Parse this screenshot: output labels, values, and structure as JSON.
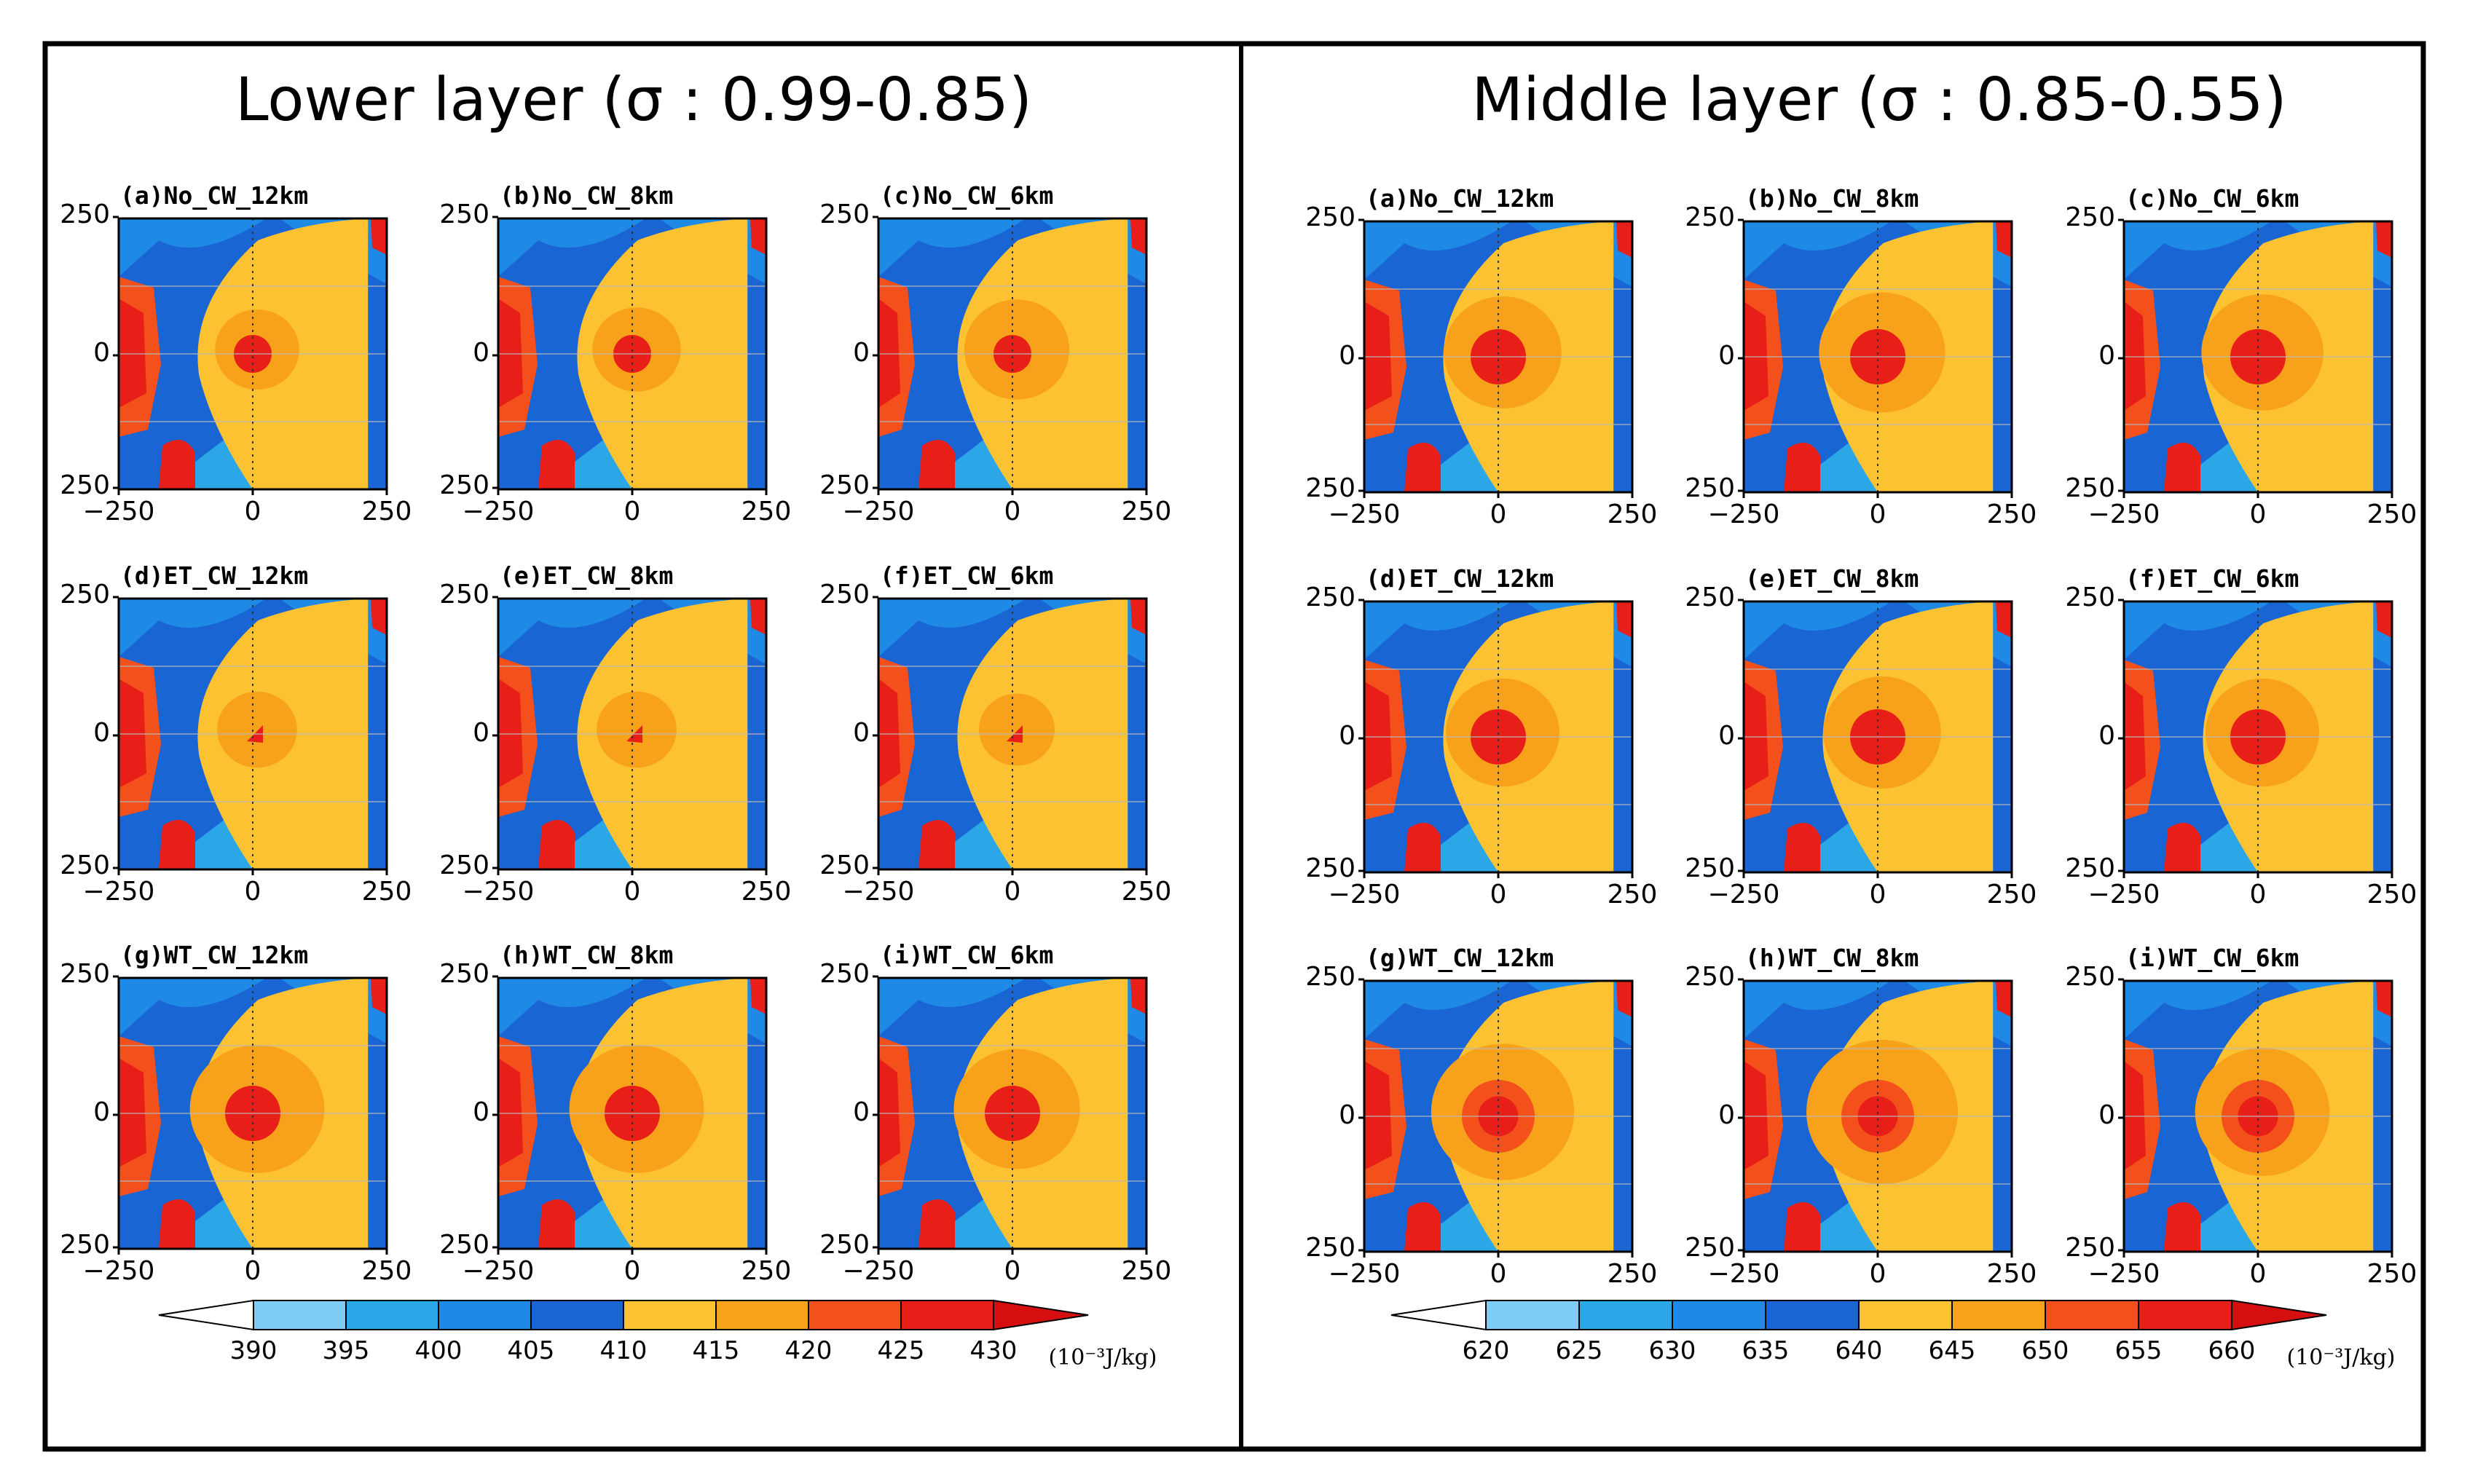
{
  "figure": {
    "panels": [
      {
        "title": "Lower layer (σ : 0.99-0.85)",
        "unit": "(10⁻³J/kg)",
        "colorbar": {
          "levels": [
            390,
            395,
            400,
            405,
            410,
            415,
            420,
            425,
            430
          ],
          "colors": [
            "#ffffff",
            "#7fcdf4",
            "#2ba7e8",
            "#1e8ae6",
            "#1a65d4",
            "#fdc232",
            "#f8a11b",
            "#f4501c",
            "#e81e18",
            "#d50e10"
          ]
        },
        "subplots": [
          {
            "label": "(a)No_CW_12km",
            "core": 1,
            "ring": 1.0
          },
          {
            "label": "(b)No_CW_8km",
            "core": 1,
            "ring": 1.05
          },
          {
            "label": "(c)No_CW_6km",
            "core": 1,
            "ring": 1.25
          },
          {
            "label": "(d)ET_CW_12km",
            "core": 0,
            "ring": 0.95
          },
          {
            "label": "(e)ET_CW_8km",
            "core": 0,
            "ring": 0.95
          },
          {
            "label": "(f)ET_CW_6km",
            "core": 0,
            "ring": 0.9
          },
          {
            "label": "(g)WT_CW_12km",
            "core": 2,
            "ring": 1.6
          },
          {
            "label": "(h)WT_CW_8km",
            "core": 2,
            "ring": 1.6
          },
          {
            "label": "(i)WT_CW_6km",
            "core": 2,
            "ring": 1.5
          }
        ]
      },
      {
        "title": "Middle layer (σ : 0.85-0.55)",
        "unit": "(10⁻³J/kg)",
        "colorbar": {
          "levels": [
            620,
            625,
            630,
            635,
            640,
            645,
            650,
            655,
            660
          ],
          "colors": [
            "#ffffff",
            "#7fcdf4",
            "#2ba7e8",
            "#1e8ae6",
            "#1a65d4",
            "#fdc232",
            "#f8a11b",
            "#f4501c",
            "#e81e18",
            "#d50e10"
          ]
        },
        "subplots": [
          {
            "label": "(a)No_CW_12km",
            "core": 2,
            "ring": 1.4
          },
          {
            "label": "(b)No_CW_8km",
            "core": 2,
            "ring": 1.5
          },
          {
            "label": "(c)No_CW_6km",
            "core": 2,
            "ring": 1.45
          },
          {
            "label": "(d)ET_CW_12km",
            "core": 2,
            "ring": 1.35
          },
          {
            "label": "(e)ET_CW_8km",
            "core": 2,
            "ring": 1.4
          },
          {
            "label": "(f)ET_CW_6km",
            "core": 2,
            "ring": 1.35
          },
          {
            "label": "(g)WT_CW_12km",
            "core": 3,
            "ring": 1.7
          },
          {
            "label": "(h)WT_CW_8km",
            "core": 3,
            "ring": 1.8
          },
          {
            "label": "(i)WT_CW_6km",
            "core": 3,
            "ring": 1.6
          }
        ]
      }
    ]
  },
  "chart_data": [
    {
      "type": "heatmap",
      "title": "Lower layer (σ : 0.99-0.85)",
      "xlim": [
        -250,
        250
      ],
      "ylim": [
        -250,
        250
      ],
      "x_ticks": [
        "−250",
        "0",
        "250"
      ],
      "y_ticks": [
        "250",
        "0",
        "250"
      ],
      "panels": [
        "(a)No_CW_12km",
        "(b)No_CW_8km",
        "(c)No_CW_6km",
        "(d)ET_CW_12km",
        "(e)ET_CW_8km",
        "(f)ET_CW_6km",
        "(g)WT_CW_12km",
        "(h)WT_CW_8km",
        "(i)WT_CW_6km"
      ],
      "colorbar_levels": [
        390,
        395,
        400,
        405,
        410,
        415,
        420,
        425,
        430
      ],
      "unit": "(10⁻³J/kg)"
    },
    {
      "type": "heatmap",
      "title": "Middle layer (σ : 0.85-0.55)",
      "xlim": [
        -250,
        250
      ],
      "ylim": [
        -250,
        250
      ],
      "x_ticks": [
        "−250",
        "0",
        "250"
      ],
      "y_ticks": [
        "250",
        "0",
        "250"
      ],
      "panels": [
        "(a)No_CW_12km",
        "(b)No_CW_8km",
        "(c)No_CW_6km",
        "(d)ET_CW_12km",
        "(e)ET_CW_8km",
        "(f)ET_CW_6km",
        "(g)WT_CW_12km",
        "(h)WT_CW_8km",
        "(i)WT_CW_6km"
      ],
      "colorbar_levels": [
        620,
        625,
        630,
        635,
        640,
        645,
        650,
        655,
        660
      ],
      "unit": "(10⁻³J/kg)"
    }
  ],
  "ticks": {
    "x": [
      "−250",
      "0",
      "250"
    ],
    "y": [
      "250",
      "0",
      "250"
    ]
  }
}
